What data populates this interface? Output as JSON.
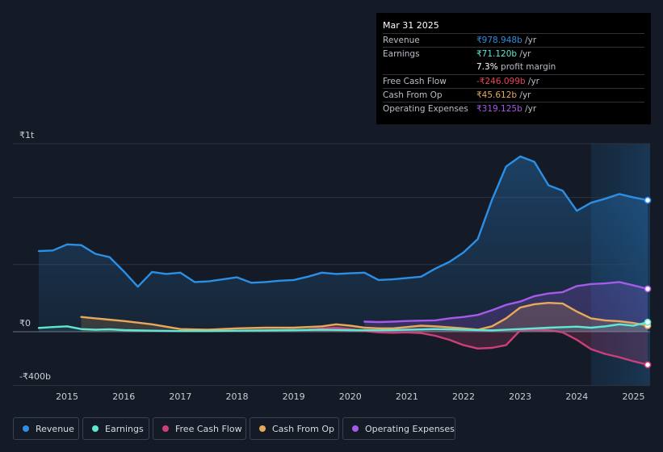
{
  "tooltip": {
    "date": "Mar 31 2025",
    "rows": [
      {
        "label": "Revenue",
        "value": "₹978.948b",
        "unit": " /yr",
        "color": "#2b8fe6"
      },
      {
        "label": "Earnings",
        "value": "₹71.120b",
        "unit": " /yr",
        "color": "#5ee8d4"
      },
      {
        "label": "",
        "value": "7.3%",
        "unit": " profit margin",
        "color": "#ffffff"
      },
      {
        "label": "Free Cash Flow",
        "value": "-₹246.099b",
        "unit": " /yr",
        "color": "#e8465a"
      },
      {
        "label": "Cash From Op",
        "value": "₹45.612b",
        "unit": " /yr",
        "color": "#e8a95a"
      },
      {
        "label": "Operating Expenses",
        "value": "₹319.125b",
        "unit": " /yr",
        "color": "#a65ae8"
      }
    ]
  },
  "legend": [
    {
      "label": "Revenue",
      "color": "#2b8fe6"
    },
    {
      "label": "Earnings",
      "color": "#5ee8d4"
    },
    {
      "label": "Free Cash Flow",
      "color": "#cc3f7a"
    },
    {
      "label": "Cash From Op",
      "color": "#e8a95a"
    },
    {
      "label": "Operating Expenses",
      "color": "#a65ae8"
    }
  ],
  "chart_data": {
    "type": "area",
    "title": "",
    "xlabel": "",
    "ylabel": "",
    "x_range": [
      2014.5,
      2025.25
    ],
    "ylim": [
      -400,
      1400
    ],
    "y_tick_labels": [
      {
        "value": 1400,
        "label": "₹1t"
      },
      {
        "value": 0,
        "label": "₹0"
      },
      {
        "value": -400,
        "label": "-₹400b"
      }
    ],
    "x_ticks": [
      2015,
      2016,
      2017,
      2018,
      2019,
      2020,
      2021,
      2022,
      2023,
      2024,
      2025
    ],
    "x_tick_labels": [
      "2015",
      "2016",
      "2017",
      "2018",
      "2019",
      "2020",
      "2021",
      "2022",
      "2023",
      "2024",
      "2025"
    ],
    "forecast_start": 2024.25,
    "series": [
      {
        "name": "Revenue",
        "color": "#2b8fe6",
        "fill": true,
        "points": [
          [
            2014.5,
            600
          ],
          [
            2014.75,
            605
          ],
          [
            2015.0,
            650
          ],
          [
            2015.25,
            645
          ],
          [
            2015.5,
            580
          ],
          [
            2015.75,
            555
          ],
          [
            2016.0,
            450
          ],
          [
            2016.25,
            335
          ],
          [
            2016.5,
            445
          ],
          [
            2016.75,
            430
          ],
          [
            2017.0,
            440
          ],
          [
            2017.25,
            370
          ],
          [
            2017.5,
            375
          ],
          [
            2017.75,
            390
          ],
          [
            2018.0,
            405
          ],
          [
            2018.25,
            365
          ],
          [
            2018.5,
            370
          ],
          [
            2018.75,
            380
          ],
          [
            2019.0,
            385
          ],
          [
            2019.25,
            410
          ],
          [
            2019.5,
            440
          ],
          [
            2019.75,
            430
          ],
          [
            2020.0,
            435
          ],
          [
            2020.25,
            440
          ],
          [
            2020.5,
            385
          ],
          [
            2020.75,
            390
          ],
          [
            2021.0,
            400
          ],
          [
            2021.25,
            410
          ],
          [
            2021.5,
            470
          ],
          [
            2021.75,
            520
          ],
          [
            2022.0,
            590
          ],
          [
            2022.25,
            690
          ],
          [
            2022.5,
            980
          ],
          [
            2022.75,
            1230
          ],
          [
            2023.0,
            1305
          ],
          [
            2023.25,
            1265
          ],
          [
            2023.5,
            1090
          ],
          [
            2023.75,
            1050
          ],
          [
            2024.0,
            900
          ],
          [
            2024.25,
            960
          ],
          [
            2024.5,
            990
          ],
          [
            2024.75,
            1025
          ],
          [
            2025.0,
            1000
          ],
          [
            2025.25,
            979
          ]
        ]
      },
      {
        "name": "Earnings",
        "color": "#5ee8d4",
        "fill": true,
        "points": [
          [
            2014.5,
            28
          ],
          [
            2014.75,
            35
          ],
          [
            2015.0,
            40
          ],
          [
            2015.25,
            20
          ],
          [
            2015.5,
            15
          ],
          [
            2015.75,
            18
          ],
          [
            2016.0,
            12
          ],
          [
            2016.5,
            8
          ],
          [
            2017.0,
            5
          ],
          [
            2017.5,
            5
          ],
          [
            2018.0,
            8
          ],
          [
            2018.5,
            10
          ],
          [
            2019.0,
            12
          ],
          [
            2019.5,
            15
          ],
          [
            2020.0,
            12
          ],
          [
            2020.5,
            10
          ],
          [
            2021.0,
            15
          ],
          [
            2021.5,
            20
          ],
          [
            2022.0,
            15
          ],
          [
            2022.5,
            10
          ],
          [
            2023.0,
            20
          ],
          [
            2023.5,
            30
          ],
          [
            2024.0,
            38
          ],
          [
            2024.25,
            30
          ],
          [
            2024.5,
            40
          ],
          [
            2024.75,
            55
          ],
          [
            2025.0,
            45
          ],
          [
            2025.25,
            71
          ]
        ]
      },
      {
        "name": "Free Cash Flow",
        "color": "#cc3f7a",
        "fill": true,
        "points": [
          [
            2019.25,
            15
          ],
          [
            2019.5,
            25
          ],
          [
            2019.75,
            30
          ],
          [
            2020.0,
            20
          ],
          [
            2020.25,
            5
          ],
          [
            2020.5,
            -5
          ],
          [
            2020.75,
            -8
          ],
          [
            2021.0,
            -5
          ],
          [
            2021.25,
            -10
          ],
          [
            2021.5,
            -30
          ],
          [
            2021.75,
            -60
          ],
          [
            2022.0,
            -100
          ],
          [
            2022.25,
            -125
          ],
          [
            2022.5,
            -120
          ],
          [
            2022.75,
            -100
          ],
          [
            2023.0,
            10
          ],
          [
            2023.25,
            15
          ],
          [
            2023.5,
            12
          ],
          [
            2023.75,
            -5
          ],
          [
            2024.0,
            -60
          ],
          [
            2024.25,
            -130
          ],
          [
            2024.5,
            -165
          ],
          [
            2024.75,
            -190
          ],
          [
            2025.0,
            -220
          ],
          [
            2025.25,
            -246
          ]
        ]
      },
      {
        "name": "Cash From Op",
        "color": "#e8a95a",
        "fill": true,
        "points": [
          [
            2015.25,
            110
          ],
          [
            2015.5,
            100
          ],
          [
            2016.0,
            80
          ],
          [
            2016.5,
            55
          ],
          [
            2017.0,
            20
          ],
          [
            2017.5,
            15
          ],
          [
            2018.0,
            25
          ],
          [
            2018.5,
            30
          ],
          [
            2019.0,
            30
          ],
          [
            2019.5,
            40
          ],
          [
            2019.75,
            55
          ],
          [
            2020.0,
            45
          ],
          [
            2020.25,
            30
          ],
          [
            2020.5,
            25
          ],
          [
            2020.75,
            25
          ],
          [
            2021.0,
            35
          ],
          [
            2021.25,
            45
          ],
          [
            2021.5,
            40
          ],
          [
            2022.0,
            25
          ],
          [
            2022.25,
            15
          ],
          [
            2022.5,
            40
          ],
          [
            2022.75,
            100
          ],
          [
            2023.0,
            180
          ],
          [
            2023.25,
            205
          ],
          [
            2023.5,
            215
          ],
          [
            2023.75,
            210
          ],
          [
            2024.0,
            150
          ],
          [
            2024.25,
            100
          ],
          [
            2024.5,
            85
          ],
          [
            2024.75,
            78
          ],
          [
            2025.0,
            65
          ],
          [
            2025.25,
            46
          ]
        ]
      },
      {
        "name": "Operating Expenses",
        "color": "#a65ae8",
        "fill": true,
        "points": [
          [
            2020.25,
            75
          ],
          [
            2020.5,
            72
          ],
          [
            2020.75,
            75
          ],
          [
            2021.0,
            80
          ],
          [
            2021.5,
            85
          ],
          [
            2021.75,
            100
          ],
          [
            2022.0,
            110
          ],
          [
            2022.25,
            125
          ],
          [
            2022.5,
            160
          ],
          [
            2022.75,
            200
          ],
          [
            2023.0,
            225
          ],
          [
            2023.25,
            265
          ],
          [
            2023.5,
            285
          ],
          [
            2023.75,
            295
          ],
          [
            2024.0,
            340
          ],
          [
            2024.25,
            355
          ],
          [
            2024.5,
            360
          ],
          [
            2024.75,
            370
          ],
          [
            2025.0,
            345
          ],
          [
            2025.25,
            319
          ]
        ]
      }
    ]
  }
}
